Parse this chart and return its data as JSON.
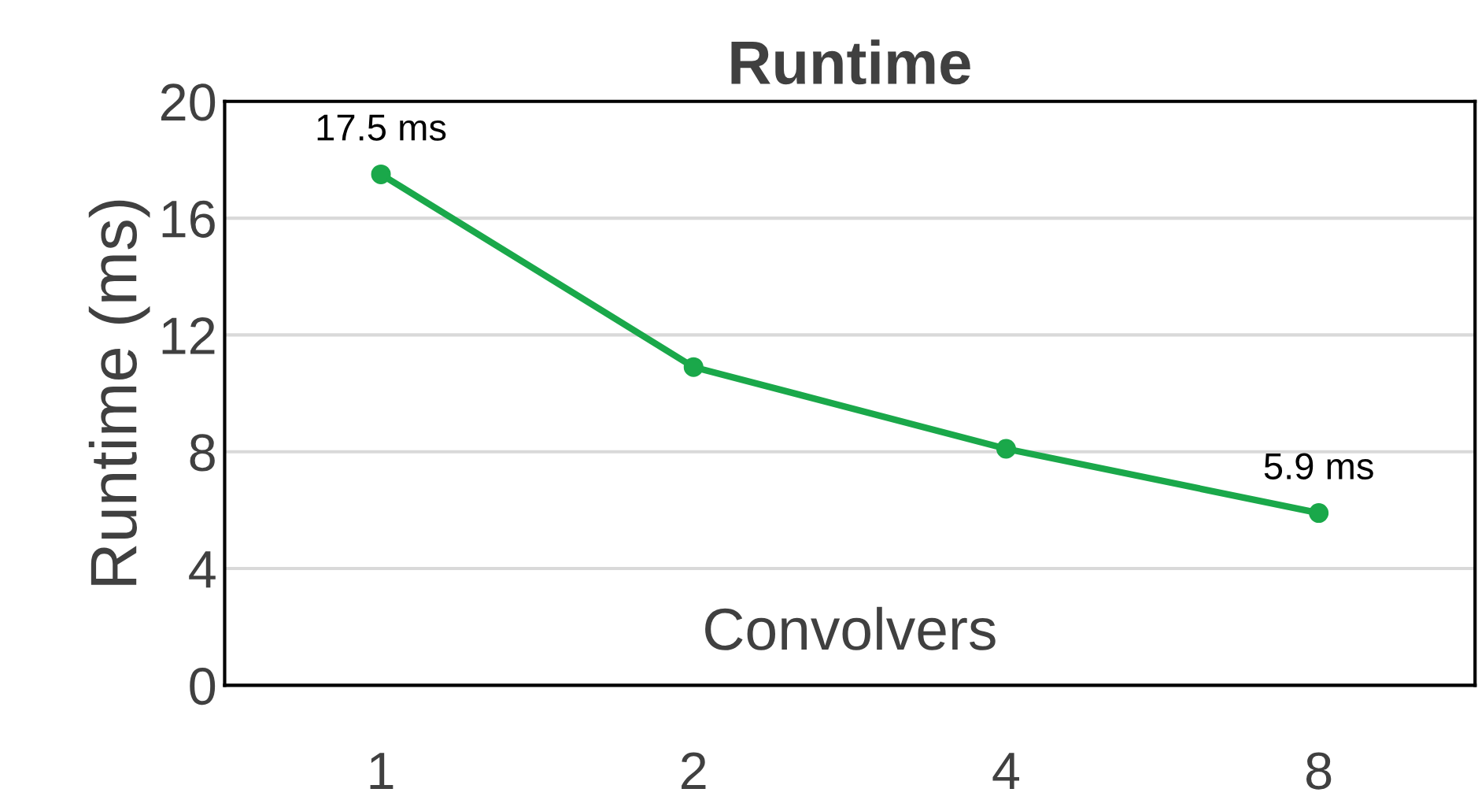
{
  "chart_data": {
    "type": "line",
    "title": "Runtime",
    "xlabel": "Convolvers",
    "ylabel": "Runtime (ms)",
    "categories": [
      "1",
      "2",
      "4",
      "8"
    ],
    "series": [
      {
        "color": "#1aa84a",
        "values": [
          17.5,
          10.9,
          8.1,
          5.9
        ],
        "value_labels": [
          "17.5 ms",
          null,
          null,
          "5.9 ms"
        ]
      }
    ],
    "ylim": [
      0,
      20
    ],
    "yticks": [
      0,
      4,
      8,
      12,
      16,
      20
    ],
    "grid": "y",
    "marker": "circle",
    "line_style": "solid",
    "legend": false
  }
}
